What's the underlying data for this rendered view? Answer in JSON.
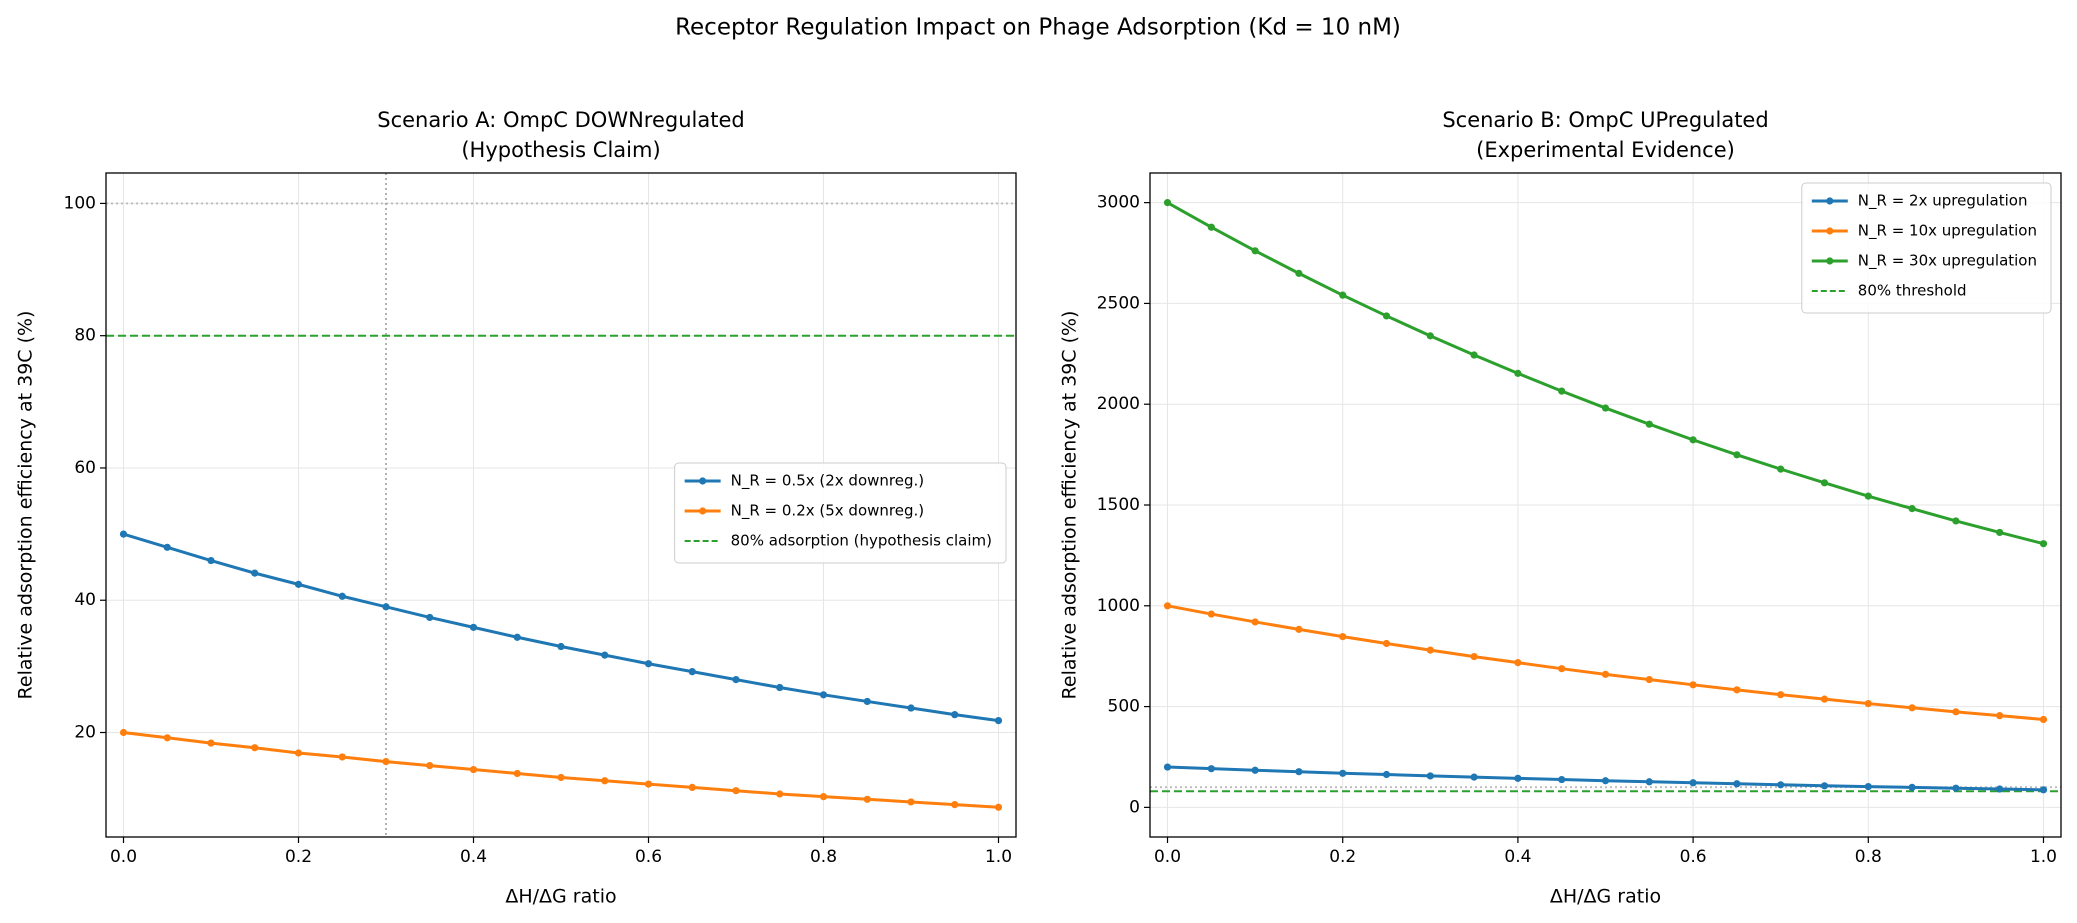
{
  "title": "Receptor Regulation Impact on Phage Adsorption (Kd = 10 nM)",
  "chart_data": [
    {
      "type": "line",
      "title": "Scenario A: OmpC DOWNregulated",
      "subtitle": "(Hypothesis Claim)",
      "xlabel": "ΔH/ΔG ratio",
      "ylabel": "Relative adsorption efficiency at 39C (%)",
      "x": [
        0,
        0.05,
        0.1,
        0.15,
        0.2,
        0.25,
        0.3,
        0.35,
        0.4,
        0.45,
        0.5,
        0.55,
        0.6,
        0.65,
        0.7,
        0.75,
        0.8,
        0.85,
        0.9,
        0.95,
        1
      ],
      "series": [
        {
          "name": "N_R = 0.5x (2x downreg.)",
          "color": "#1f77b4",
          "values": [
            50,
            48.0,
            46.0,
            44.1,
            42.4,
            40.6,
            39.0,
            37.4,
            35.9,
            34.4,
            33.0,
            31.7,
            30.4,
            29.2,
            28.0,
            26.8,
            25.7,
            24.7,
            23.7,
            22.7,
            21.8
          ]
        },
        {
          "name": "N_R = 0.2x (5x downreg.)",
          "color": "#ff7f0e",
          "values": [
            20,
            19.2,
            18.4,
            17.7,
            16.9,
            16.3,
            15.6,
            15.0,
            14.4,
            13.8,
            13.2,
            12.7,
            12.2,
            11.7,
            11.2,
            10.7,
            10.3,
            9.9,
            9.5,
            9.1,
            8.7
          ]
        }
      ],
      "threshold": {
        "value": 80,
        "label": "80% adsorption (hypothesis claim)",
        "color": "#2ca02c"
      },
      "reference_hlines": [
        100
      ],
      "reference_vlines": [
        0.3
      ],
      "xlim": [
        -0.02,
        1.02
      ],
      "ylim": [
        4.2,
        104.6
      ],
      "xticks": [
        {
          "value": 0,
          "label": "0.0"
        },
        0.2,
        0.4,
        0.6,
        0.8,
        {
          "value": 1,
          "label": "1.0"
        }
      ],
      "yticks": [
        20,
        40,
        60,
        80,
        100
      ],
      "grid": true,
      "legend": "center right"
    },
    {
      "type": "line",
      "title": "Scenario B: OmpC UPregulated",
      "subtitle": "(Experimental Evidence)",
      "xlabel": "ΔH/ΔG ratio",
      "ylabel": "Relative adsorption efficiency at 39C (%)",
      "x": [
        0,
        0.05,
        0.1,
        0.15,
        0.2,
        0.25,
        0.3,
        0.35,
        0.4,
        0.45,
        0.5,
        0.55,
        0.6,
        0.65,
        0.7,
        0.75,
        0.8,
        0.85,
        0.9,
        0.95,
        1
      ],
      "series": [
        {
          "name": "N_R = 2x upregulation",
          "color": "#1f77b4",
          "values": [
            200,
            192,
            184,
            177,
            169,
            163,
            156,
            150,
            144,
            138,
            132,
            127,
            122,
            117,
            112,
            107,
            103,
            99,
            95,
            91,
            87
          ]
        },
        {
          "name": "N_R = 10x upregulation",
          "color": "#ff7f0e",
          "values": [
            1000,
            959,
            920,
            883,
            847,
            813,
            780,
            748,
            718,
            688,
            660,
            634,
            608,
            583,
            559,
            537,
            515,
            494,
            474,
            455,
            436
          ]
        },
        {
          "name": "N_R = 30x upregulation",
          "color": "#2ca02c",
          "values": [
            3000,
            2878,
            2761,
            2649,
            2541,
            2438,
            2339,
            2244,
            2153,
            2065,
            1981,
            1901,
            1823,
            1749,
            1678,
            1610,
            1544,
            1482,
            1421,
            1364,
            1308
          ]
        }
      ],
      "threshold": {
        "value": 80,
        "label": "80% threshold",
        "color": "#2ca02c"
      },
      "reference_hlines": [
        100
      ],
      "reference_vlines": [],
      "xlim": [
        -0.02,
        1.02
      ],
      "ylim": [
        -147,
        3147
      ],
      "xticks": [
        {
          "value": 0,
          "label": "0.0"
        },
        0.2,
        0.4,
        0.6,
        0.8,
        {
          "value": 1,
          "label": "1.0"
        }
      ],
      "yticks": [
        0,
        500,
        1000,
        1500,
        2000,
        2500,
        3000
      ],
      "grid": true,
      "legend": "upper right"
    }
  ]
}
